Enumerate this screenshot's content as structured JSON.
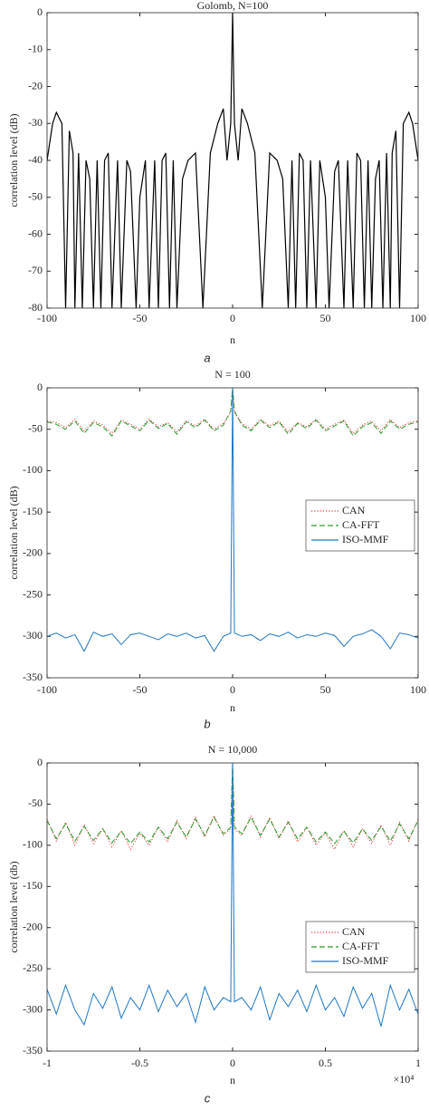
{
  "chart_data": [
    {
      "type": "line",
      "title": "Golomb, N=100",
      "xlabel": "n",
      "ylabel": "correlation level (dB)",
      "caption": "a",
      "xlim": [
        -100,
        100
      ],
      "ylim": [
        -80,
        0
      ],
      "xticks": [
        -100,
        -50,
        0,
        50,
        100
      ],
      "yticks": [
        0,
        -10,
        -20,
        -30,
        -40,
        -50,
        -60,
        -70,
        -80
      ],
      "grid": false,
      "color": "#000000",
      "x": [
        -100,
        -97,
        -95,
        -92,
        -90,
        -88,
        -86,
        -85,
        -83,
        -81,
        -79,
        -77,
        -75,
        -73,
        -71,
        -69,
        -67,
        -65,
        -62,
        -60,
        -57,
        -55,
        -52,
        -50,
        -47,
        -45,
        -42,
        -40,
        -38,
        -36,
        -34,
        -32,
        -30,
        -27,
        -24,
        -20,
        -16,
        -12,
        -8,
        -5,
        -3,
        -1,
        0,
        1,
        3,
        5,
        8,
        12,
        16,
        20,
        24,
        27,
        30,
        32,
        34,
        36,
        38,
        40,
        42,
        45,
        47,
        50,
        52,
        55,
        57,
        60,
        62,
        65,
        67,
        69,
        71,
        73,
        75,
        77,
        79,
        81,
        83,
        85,
        86,
        88,
        90,
        92,
        95,
        97,
        100
      ],
      "values": [
        -40,
        -30,
        -27,
        -30,
        -80,
        -32,
        -38,
        -80,
        -38,
        -80,
        -40,
        -45,
        -80,
        -40,
        -80,
        -40,
        -38,
        -80,
        -40,
        -80,
        -40,
        -43,
        -80,
        -50,
        -40,
        -80,
        -40,
        -80,
        -40,
        -38,
        -80,
        -40,
        -80,
        -45,
        -40,
        -38,
        -80,
        -38,
        -30,
        -26,
        -40,
        -30,
        0,
        -30,
        -40,
        -26,
        -30,
        -38,
        -80,
        -38,
        -40,
        -45,
        -80,
        -40,
        -80,
        -38,
        -40,
        -80,
        -40,
        -80,
        -40,
        -50,
        -80,
        -43,
        -40,
        -80,
        -40,
        -80,
        -38,
        -40,
        -80,
        -40,
        -80,
        -45,
        -40,
        -80,
        -38,
        -80,
        -38,
        -32,
        -80,
        -30,
        -27,
        -30,
        -40
      ]
    },
    {
      "type": "line",
      "title": "N = 100",
      "xlabel": "n",
      "ylabel": "correlation level (dB)",
      "caption": "b",
      "xlim": [
        -100,
        100
      ],
      "ylim": [
        -350,
        0
      ],
      "xticks": [
        -100,
        -50,
        0,
        50,
        100
      ],
      "yticks": [
        0,
        -50,
        -100,
        -150,
        -200,
        -250,
        -300,
        -350
      ],
      "grid": false,
      "x": [
        -100,
        -95,
        -90,
        -85,
        -80,
        -75,
        -70,
        -65,
        -60,
        -55,
        -50,
        -45,
        -40,
        -35,
        -30,
        -25,
        -20,
        -15,
        -10,
        -5,
        -1,
        0,
        1,
        5,
        10,
        15,
        20,
        25,
        30,
        35,
        40,
        45,
        50,
        55,
        60,
        65,
        70,
        75,
        80,
        85,
        90,
        95,
        100
      ],
      "series": [
        {
          "name": "CAN",
          "color": "#e8393b",
          "linestyle": "dotted",
          "values": [
            -40,
            -42,
            -48,
            -38,
            -52,
            -40,
            -45,
            -55,
            -39,
            -44,
            -50,
            -38,
            -47,
            -42,
            -53,
            -40,
            -46,
            -38,
            -50,
            -43,
            -30,
            0,
            -30,
            -43,
            -50,
            -38,
            -46,
            -40,
            -53,
            -42,
            -47,
            -38,
            -50,
            -44,
            -39,
            -55,
            -45,
            -40,
            -52,
            -38,
            -48,
            -42,
            -40
          ]
        },
        {
          "name": "CA-FFT",
          "color": "#2a9a2a",
          "linestyle": "dashed",
          "values": [
            -41,
            -44,
            -50,
            -40,
            -55,
            -42,
            -47,
            -58,
            -40,
            -46,
            -52,
            -39,
            -49,
            -43,
            -56,
            -41,
            -48,
            -39,
            -52,
            -45,
            -28,
            0,
            -28,
            -45,
            -52,
            -39,
            -48,
            -41,
            -56,
            -43,
            -49,
            -39,
            -52,
            -46,
            -40,
            -58,
            -47,
            -42,
            -55,
            -40,
            -50,
            -44,
            -41
          ]
        },
        {
          "name": "ISO-MMF",
          "color": "#1f77c4",
          "linestyle": "solid",
          "values": [
            -300,
            -296,
            -302,
            -298,
            -318,
            -295,
            -300,
            -297,
            -310,
            -298,
            -296,
            -300,
            -304,
            -297,
            -300,
            -296,
            -302,
            -299,
            -318,
            -300,
            -296,
            0,
            -296,
            -300,
            -298,
            -305,
            -297,
            -300,
            -295,
            -302,
            -298,
            -300,
            -296,
            -299,
            -312,
            -300,
            -297,
            -292,
            -300,
            -315,
            -296,
            -298,
            -302
          ]
        }
      ]
    },
    {
      "type": "line",
      "title": "N = 10,000",
      "xlabel": "n",
      "ylabel": "correlation level (db)",
      "caption": "c",
      "x_exponent_label": "×10⁴",
      "xlim": [
        -10000,
        10000
      ],
      "ylim": [
        -350,
        0
      ],
      "xticks": [
        {
          "value": -10000,
          "label": "-1"
        },
        {
          "value": -5000,
          "label": "-0.5"
        },
        0,
        {
          "value": 5000,
          "label": "0.5"
        },
        {
          "value": 10000,
          "label": "1"
        }
      ],
      "yticks": [
        0,
        -50,
        -100,
        -150,
        -200,
        -250,
        -300,
        -350
      ],
      "grid": false,
      "x": [
        -10000,
        -9500,
        -9000,
        -8500,
        -8000,
        -7500,
        -7000,
        -6500,
        -6000,
        -5500,
        -5000,
        -4500,
        -4000,
        -3500,
        -3000,
        -2500,
        -2000,
        -1500,
        -1000,
        -500,
        -100,
        0,
        100,
        500,
        1000,
        1500,
        2000,
        2500,
        3000,
        3500,
        4000,
        4500,
        5000,
        5500,
        6000,
        6500,
        7000,
        7500,
        8000,
        8500,
        9000,
        9500,
        10000
      ],
      "series": [
        {
          "name": "CAN",
          "color": "#e8393b",
          "linestyle": "dotted",
          "values": [
            -68,
            -95,
            -72,
            -100,
            -75,
            -98,
            -80,
            -102,
            -82,
            -105,
            -85,
            -100,
            -78,
            -96,
            -70,
            -92,
            -66,
            -90,
            -64,
            -88,
            -80,
            0,
            -80,
            -88,
            -64,
            -90,
            -66,
            -92,
            -70,
            -96,
            -78,
            -100,
            -85,
            -105,
            -82,
            -102,
            -80,
            -98,
            -75,
            -100,
            -72,
            -95,
            -68
          ]
        },
        {
          "name": "CA-FFT",
          "color": "#2a9a2a",
          "linestyle": "dashed",
          "values": [
            -70,
            -92,
            -74,
            -95,
            -77,
            -94,
            -80,
            -97,
            -83,
            -98,
            -84,
            -96,
            -78,
            -92,
            -72,
            -90,
            -68,
            -88,
            -66,
            -86,
            -78,
            0,
            -78,
            -86,
            -66,
            -88,
            -68,
            -90,
            -72,
            -92,
            -78,
            -96,
            -84,
            -98,
            -83,
            -97,
            -80,
            -94,
            -77,
            -95,
            -74,
            -92,
            -70
          ]
        },
        {
          "name": "ISO-MMF",
          "color": "#1f77c4",
          "linestyle": "solid",
          "values": [
            -275,
            -305,
            -270,
            -300,
            -318,
            -280,
            -298,
            -272,
            -310,
            -285,
            -300,
            -270,
            -302,
            -276,
            -296,
            -280,
            -315,
            -272,
            -300,
            -285,
            -290,
            0,
            -290,
            -285,
            -300,
            -272,
            -312,
            -280,
            -296,
            -276,
            -302,
            -270,
            -300,
            -285,
            -308,
            -272,
            -298,
            -280,
            -320,
            -270,
            -300,
            -275,
            -305
          ]
        }
      ]
    }
  ]
}
